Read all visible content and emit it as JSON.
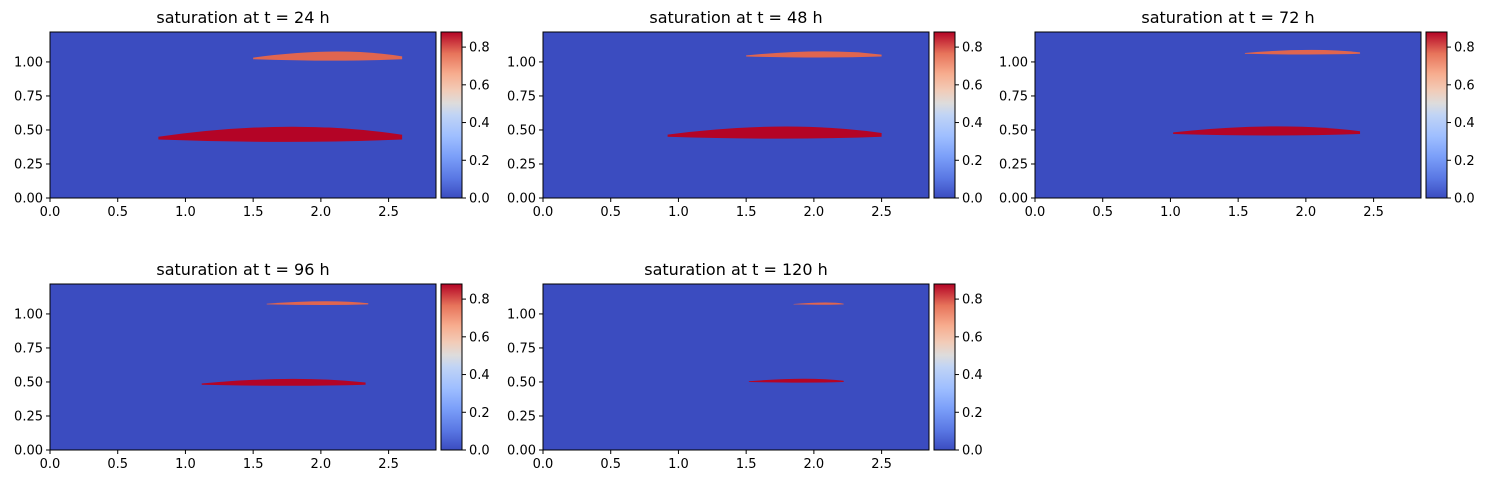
{
  "figure": {
    "colormap": "coolwarm",
    "colors": {
      "low": "#3b4cc0",
      "mid": "#dddddd",
      "high": "#b40426"
    }
  },
  "chart_data": [
    {
      "type": "heatmap",
      "title": "saturation at t = 24 h",
      "xlim": [
        0,
        2.85
      ],
      "ylim": [
        0,
        1.22
      ],
      "xticks": [
        "0.0",
        "0.5",
        "1.0",
        "1.5",
        "2.0",
        "2.5"
      ],
      "yticks": [
        "0.00",
        "0.25",
        "0.50",
        "0.75",
        "1.00"
      ],
      "colorbar": {
        "range": [
          0,
          0.88
        ],
        "ticks": [
          "0.0",
          "0.2",
          "0.4",
          "0.6",
          "0.8"
        ]
      },
      "plumes": [
        {
          "x0": 0.8,
          "x1": 2.6,
          "y_base": 0.43,
          "thickness": 0.1,
          "value": 0.87
        },
        {
          "x0": 1.5,
          "x1": 2.6,
          "y_base": 1.02,
          "thickness": 0.06,
          "value": 0.72
        }
      ]
    },
    {
      "type": "heatmap",
      "title": "saturation at t = 48 h",
      "xlim": [
        0,
        2.85
      ],
      "ylim": [
        0,
        1.22
      ],
      "xticks": [
        "0.0",
        "0.5",
        "1.0",
        "1.5",
        "2.0",
        "2.5"
      ],
      "yticks": [
        "0.00",
        "0.25",
        "0.50",
        "0.75",
        "1.00"
      ],
      "colorbar": {
        "range": [
          0,
          0.88
        ],
        "ticks": [
          "0.0",
          "0.2",
          "0.4",
          "0.6",
          "0.8"
        ]
      },
      "plumes": [
        {
          "x0": 0.92,
          "x1": 2.5,
          "y_base": 0.45,
          "thickness": 0.08,
          "value": 0.87
        },
        {
          "x0": 1.5,
          "x1": 2.5,
          "y_base": 1.04,
          "thickness": 0.04,
          "value": 0.72
        }
      ]
    },
    {
      "type": "heatmap",
      "title": "saturation at t = 72 h",
      "xlim": [
        0,
        2.85
      ],
      "ylim": [
        0,
        1.22
      ],
      "xticks": [
        "0.0",
        "0.5",
        "1.0",
        "1.5",
        "2.0",
        "2.5"
      ],
      "yticks": [
        "0.00",
        "0.25",
        "0.50",
        "0.75",
        "1.00"
      ],
      "colorbar": {
        "range": [
          0,
          0.88
        ],
        "ticks": [
          "0.0",
          "0.2",
          "0.4",
          "0.6",
          "0.8"
        ]
      },
      "plumes": [
        {
          "x0": 1.02,
          "x1": 2.4,
          "y_base": 0.47,
          "thickness": 0.06,
          "value": 0.87
        },
        {
          "x0": 1.55,
          "x1": 2.4,
          "y_base": 1.06,
          "thickness": 0.03,
          "value": 0.72
        }
      ]
    },
    {
      "type": "heatmap",
      "title": "saturation at t = 96 h",
      "xlim": [
        0,
        2.85
      ],
      "ylim": [
        0,
        1.22
      ],
      "xticks": [
        "0.0",
        "0.5",
        "1.0",
        "1.5",
        "2.0",
        "2.5"
      ],
      "yticks": [
        "0.00",
        "0.25",
        "0.50",
        "0.75",
        "1.00"
      ],
      "colorbar": {
        "range": [
          0,
          0.88
        ],
        "ticks": [
          "0.0",
          "0.2",
          "0.4",
          "0.6",
          "0.8"
        ]
      },
      "plumes": [
        {
          "x0": 1.12,
          "x1": 2.33,
          "y_base": 0.48,
          "thickness": 0.045,
          "value": 0.87
        },
        {
          "x0": 1.6,
          "x1": 2.35,
          "y_base": 1.07,
          "thickness": 0.025,
          "value": 0.72
        }
      ]
    },
    {
      "type": "heatmap",
      "title": "saturation at t = 120 h",
      "xlim": [
        0,
        2.85
      ],
      "ylim": [
        0,
        1.22
      ],
      "xticks": [
        "0.0",
        "0.5",
        "1.0",
        "1.5",
        "2.0",
        "2.5"
      ],
      "yticks": [
        "0.00",
        "0.25",
        "0.50",
        "0.75",
        "1.00"
      ],
      "colorbar": {
        "range": [
          0,
          0.88
        ],
        "ticks": [
          "0.0",
          "0.2",
          "0.4",
          "0.6",
          "0.8"
        ]
      },
      "plumes": [
        {
          "x0": 1.52,
          "x1": 2.22,
          "y_base": 0.5,
          "thickness": 0.025,
          "value": 0.87
        },
        {
          "x0": 1.85,
          "x1": 2.22,
          "y_base": 1.07,
          "thickness": 0.015,
          "value": 0.72
        }
      ]
    }
  ]
}
